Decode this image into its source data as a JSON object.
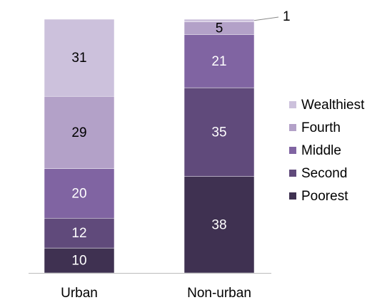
{
  "chart_data": {
    "type": "bar",
    "stack": "percent",
    "categories": [
      "Urban",
      "Non-urban"
    ],
    "series": [
      {
        "name": "Poorest",
        "color": "#3f3151",
        "label_color": "#ffffff",
        "values": [
          10,
          38
        ]
      },
      {
        "name": "Second",
        "color": "#604a7b",
        "label_color": "#ffffff",
        "values": [
          12,
          35
        ]
      },
      {
        "name": "Middle",
        "color": "#8064a2",
        "label_color": "#ffffff",
        "values": [
          20,
          21
        ]
      },
      {
        "name": "Fourth",
        "color": "#b3a1c8",
        "label_color": "#000000",
        "values": [
          29,
          5
        ]
      },
      {
        "name": "Wealthiest",
        "color": "#ccc1dc",
        "label_color": "#000000",
        "values": [
          31,
          1
        ]
      }
    ],
    "legend": "right"
  }
}
